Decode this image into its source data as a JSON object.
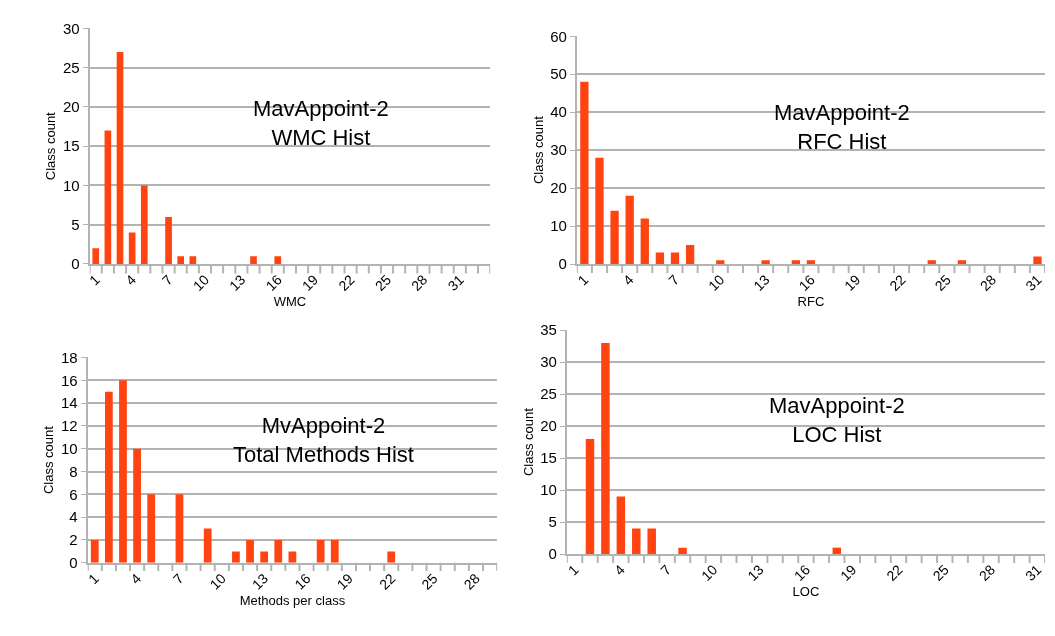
{
  "chart_data": [
    {
      "type": "bar",
      "title": "MavAppoint-2\nWMC Hist",
      "xlabel": "WMC",
      "ylabel": "Class count",
      "categories": [
        "1",
        null,
        null,
        "4",
        null,
        null,
        "7",
        null,
        null,
        "10",
        null,
        null,
        "13",
        null,
        null,
        "16",
        null,
        null,
        "19",
        null,
        null,
        "22",
        null,
        null,
        "25",
        null,
        null,
        "28",
        null,
        null,
        "31",
        null,
        null
      ],
      "values": [
        2,
        17,
        27,
        4,
        10,
        0,
        6,
        1,
        1,
        0,
        0,
        0,
        0,
        1,
        0,
        1,
        0,
        0,
        0,
        0,
        0,
        0,
        0,
        0,
        0,
        0,
        0,
        0,
        0,
        0,
        0,
        0,
        0
      ],
      "color": "#ff4411",
      "ylim": [
        0,
        30
      ],
      "yticks": [
        0,
        5,
        10,
        15,
        20,
        25,
        30
      ],
      "grid": "y"
    },
    {
      "type": "bar",
      "title": "MavAppoint-2\nRFC Hist",
      "xlabel": "RFC",
      "ylabel": "Class count",
      "categories": [
        "1",
        null,
        null,
        "4",
        null,
        null,
        "7",
        null,
        null,
        "10",
        null,
        null,
        "13",
        null,
        null,
        "16",
        null,
        null,
        "19",
        null,
        null,
        "22",
        null,
        null,
        "25",
        null,
        null,
        "28",
        null,
        null,
        "31"
      ],
      "values": [
        48,
        28,
        14,
        18,
        12,
        3,
        3,
        5,
        0,
        1,
        0,
        0,
        1,
        0,
        1,
        1,
        0,
        0,
        0,
        0,
        0,
        0,
        0,
        1,
        0,
        1,
        0,
        0,
        0,
        0,
        2
      ],
      "color": "#ff4411",
      "ylim": [
        0,
        60
      ],
      "yticks": [
        0,
        10,
        20,
        30,
        40,
        50,
        60
      ],
      "grid": "y"
    },
    {
      "type": "bar",
      "title": "MvAppoint-2\nTotal Methods Hist",
      "xlabel": "Methods per class",
      "ylabel": "Class count",
      "categories": [
        "1",
        null,
        null,
        "4",
        null,
        null,
        "7",
        null,
        null,
        "10",
        null,
        null,
        "13",
        null,
        null,
        "16",
        null,
        null,
        "19",
        null,
        null,
        "22",
        null,
        null,
        "25",
        null,
        null,
        "28",
        null
      ],
      "values": [
        2,
        15,
        16,
        10,
        6,
        0,
        6,
        0,
        3,
        0,
        1,
        2,
        1,
        2,
        1,
        0,
        2,
        2,
        0,
        0,
        0,
        1,
        0,
        0,
        0,
        0,
        0,
        0,
        0
      ],
      "color": "#ff4411",
      "ylim": [
        0,
        18
      ],
      "yticks": [
        0,
        2,
        4,
        6,
        8,
        10,
        12,
        14,
        16,
        18
      ],
      "grid": "y"
    },
    {
      "type": "bar",
      "title": "MavAppoint-2\nLOC Hist",
      "xlabel": "LOC",
      "ylabel": "Class count",
      "categories": [
        "1",
        null,
        null,
        "4",
        null,
        null,
        "7",
        null,
        null,
        "10",
        null,
        null,
        "13",
        null,
        null,
        "16",
        null,
        null,
        "19",
        null,
        null,
        "22",
        null,
        null,
        "25",
        null,
        null,
        "28",
        null,
        null,
        "31"
      ],
      "values": [
        0,
        18,
        33,
        9,
        4,
        4,
        0,
        1,
        0,
        0,
        0,
        0,
        0,
        0,
        0,
        0,
        0,
        1,
        0,
        0,
        0,
        0,
        0,
        0,
        0,
        0,
        0,
        0,
        0,
        0,
        0
      ],
      "color": "#ff4411",
      "ylim": [
        0,
        35
      ],
      "yticks": [
        0,
        5,
        10,
        15,
        20,
        25,
        30,
        35
      ],
      "grid": "y"
    }
  ]
}
